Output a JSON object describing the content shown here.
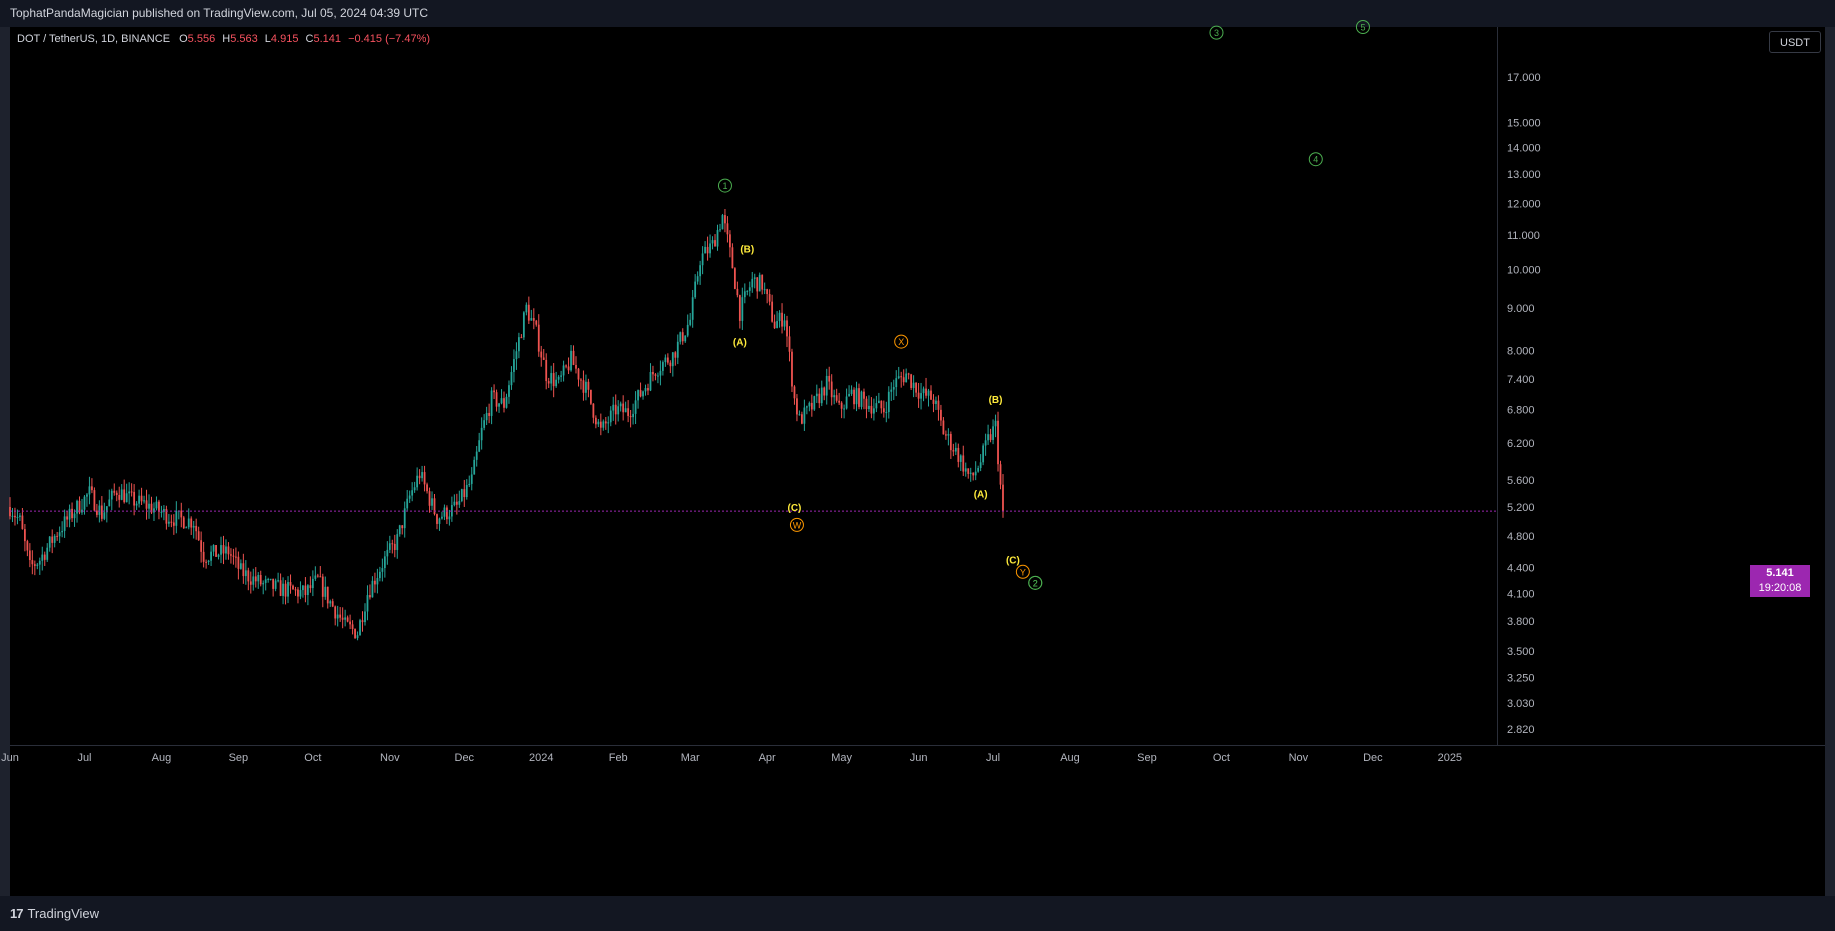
{
  "header": {
    "publisher_text": "TophatPandaMagician published on TradingView.com, Jul 05, 2024 04:39 UTC"
  },
  "legend": {
    "symbol": "DOT / TetherUS, 1D, BINANCE",
    "o_label": "O",
    "o_value": "5.556",
    "h_label": "H",
    "h_value": "5.563",
    "l_label": "L",
    "l_value": "4.915",
    "c_label": "C",
    "c_value": "5.141",
    "change": "−0.415 (−7.47%)"
  },
  "currency_button": "USDT",
  "last_price": {
    "price": "5.141",
    "countdown": "19:20:08",
    "color": "#9c27b0"
  },
  "footer": {
    "brand_logo": "17",
    "brand": "TradingView"
  },
  "colors": {
    "up": "#26a69a",
    "down": "#ef5350",
    "wave_green": "#4caf50",
    "wave_yellow": "#ffeb3b",
    "wave_orange": "#ff9800"
  },
  "chart_data": {
    "type": "candlestick",
    "title": "DOT / TetherUS, 1D, BINANCE",
    "y_axis": {
      "scale": "log",
      "range": [
        2.7,
        19.5
      ],
      "ticks": [
        "17.000",
        "15.000",
        "14.000",
        "13.000",
        "12.000",
        "11.000",
        "10.000",
        "9.000",
        "8.000",
        "7.400",
        "6.800",
        "6.200",
        "5.600",
        "5.200",
        "4.800",
        "4.400",
        "4.100",
        "3.800",
        "3.500",
        "3.250",
        "3.030",
        "2.820"
      ]
    },
    "x_axis": {
      "ticks": [
        "Jun",
        "Jul",
        "Aug",
        "Sep",
        "Oct",
        "Nov",
        "Dec",
        "2024",
        "Feb",
        "Mar",
        "Apr",
        "May",
        "Jun",
        "Jul",
        "Aug",
        "Sep",
        "Oct",
        "Nov",
        "Dec",
        "2025"
      ],
      "range": [
        "2023-06-01",
        "2025-01-20"
      ]
    },
    "price_path": [
      [
        "2023-06-01",
        5.2
      ],
      [
        "2023-06-05",
        5.0
      ],
      [
        "2023-06-09",
        4.4
      ],
      [
        "2023-06-13",
        4.5
      ],
      [
        "2023-06-20",
        4.85
      ],
      [
        "2023-06-27",
        5.15
      ],
      [
        "2023-07-03",
        5.4
      ],
      [
        "2023-07-08",
        5.1
      ],
      [
        "2023-07-14",
        5.45
      ],
      [
        "2023-07-20",
        5.3
      ],
      [
        "2023-07-28",
        5.2
      ],
      [
        "2023-08-05",
        5.05
      ],
      [
        "2023-08-14",
        5.0
      ],
      [
        "2023-08-18",
        4.55
      ],
      [
        "2023-08-28",
        4.6
      ],
      [
        "2023-09-02",
        4.35
      ],
      [
        "2023-09-11",
        4.2
      ],
      [
        "2023-09-18",
        4.15
      ],
      [
        "2023-09-28",
        4.1
      ],
      [
        "2023-10-03",
        4.25
      ],
      [
        "2023-10-08",
        4.0
      ],
      [
        "2023-10-14",
        3.75
      ],
      [
        "2023-10-19",
        3.68
      ],
      [
        "2023-10-23",
        4.1
      ],
      [
        "2023-10-29",
        4.45
      ],
      [
        "2023-11-04",
        4.75
      ],
      [
        "2023-11-09",
        5.35
      ],
      [
        "2023-11-13",
        5.7
      ],
      [
        "2023-11-20",
        5.05
      ],
      [
        "2023-11-28",
        5.2
      ],
      [
        "2023-12-04",
        5.6
      ],
      [
        "2023-12-08",
        6.4
      ],
      [
        "2023-12-12",
        7.0
      ],
      [
        "2023-12-17",
        6.9
      ],
      [
        "2023-12-22",
        8.0
      ],
      [
        "2023-12-26",
        9.0
      ],
      [
        "2023-12-30",
        8.4
      ],
      [
        "2024-01-03",
        7.5
      ],
      [
        "2024-01-08",
        7.3
      ],
      [
        "2024-01-13",
        7.8
      ],
      [
        "2024-01-19",
        7.2
      ],
      [
        "2024-01-25",
        6.4
      ],
      [
        "2024-01-31",
        6.8
      ],
      [
        "2024-02-05",
        6.75
      ],
      [
        "2024-02-10",
        7.1
      ],
      [
        "2024-02-16",
        7.6
      ],
      [
        "2024-02-23",
        7.9
      ],
      [
        "2024-03-01",
        8.7
      ],
      [
        "2024-03-05",
        10.3
      ],
      [
        "2024-03-10",
        10.7
      ],
      [
        "2024-03-14",
        11.6
      ],
      [
        "2024-03-18",
        10.1
      ],
      [
        "2024-03-21",
        8.9
      ],
      [
        "2024-03-26",
        9.7
      ],
      [
        "2024-03-30",
        9.6
      ],
      [
        "2024-04-04",
        8.6
      ],
      [
        "2024-04-08",
        8.8
      ],
      [
        "2024-04-12",
        7.0
      ],
      [
        "2024-04-14",
        6.6
      ],
      [
        "2024-04-20",
        6.9
      ],
      [
        "2024-04-25",
        7.3
      ],
      [
        "2024-04-30",
        6.8
      ],
      [
        "2024-05-05",
        7.1
      ],
      [
        "2024-05-12",
        6.9
      ],
      [
        "2024-05-18",
        6.8
      ],
      [
        "2024-05-22",
        7.3
      ],
      [
        "2024-05-27",
        7.5
      ],
      [
        "2024-06-02",
        7.1
      ],
      [
        "2024-06-07",
        7.0
      ],
      [
        "2024-06-11",
        6.4
      ],
      [
        "2024-06-17",
        6.0
      ],
      [
        "2024-06-22",
        5.6
      ],
      [
        "2024-06-26",
        5.9
      ],
      [
        "2024-06-29",
        6.25
      ],
      [
        "2024-07-02",
        6.5
      ],
      [
        "2024-07-04",
        5.5
      ],
      [
        "2024-07-05",
        5.141
      ]
    ],
    "last_price": 5.141,
    "annotations": [
      {
        "text": "1",
        "style": "circle",
        "color": "green",
        "date": "2024-03-15",
        "price": 12.6
      },
      {
        "text": "2",
        "style": "circle",
        "color": "green",
        "date": "2024-07-18",
        "price": 4.22
      },
      {
        "text": "3",
        "style": "circle",
        "color": "green",
        "date": "2024-09-29",
        "price": 19.2
      },
      {
        "text": "4",
        "style": "circle",
        "color": "green",
        "date": "2024-11-08",
        "price": 13.55
      },
      {
        "text": "5",
        "style": "circle",
        "color": "green",
        "date": "2024-11-27",
        "price": 19.5
      },
      {
        "text": "(B)",
        "style": "label",
        "color": "yellow",
        "date": "2024-03-24",
        "price": 10.6
      },
      {
        "text": "(A)",
        "style": "label",
        "color": "yellow",
        "date": "2024-03-21",
        "price": 8.2
      },
      {
        "text": "(C)",
        "style": "label",
        "color": "yellow",
        "date": "2024-04-12",
        "price": 5.2
      },
      {
        "text": "W",
        "style": "circle",
        "color": "orange",
        "date": "2024-04-13",
        "price": 4.95
      },
      {
        "text": "X",
        "style": "circle",
        "color": "orange",
        "date": "2024-05-25",
        "price": 8.2
      },
      {
        "text": "(B)",
        "style": "label",
        "color": "yellow",
        "date": "2024-07-02",
        "price": 7.0
      },
      {
        "text": "(A)",
        "style": "label",
        "color": "yellow",
        "date": "2024-06-26",
        "price": 5.4
      },
      {
        "text": "(C)",
        "style": "label",
        "color": "yellow",
        "date": "2024-07-09",
        "price": 4.5
      },
      {
        "text": "Y",
        "style": "circle",
        "color": "orange",
        "date": "2024-07-13",
        "price": 4.35
      },
      {
        "text": "2",
        "style": "circle",
        "color": "green",
        "date": "2024-07-18",
        "price": 4.22
      }
    ]
  }
}
